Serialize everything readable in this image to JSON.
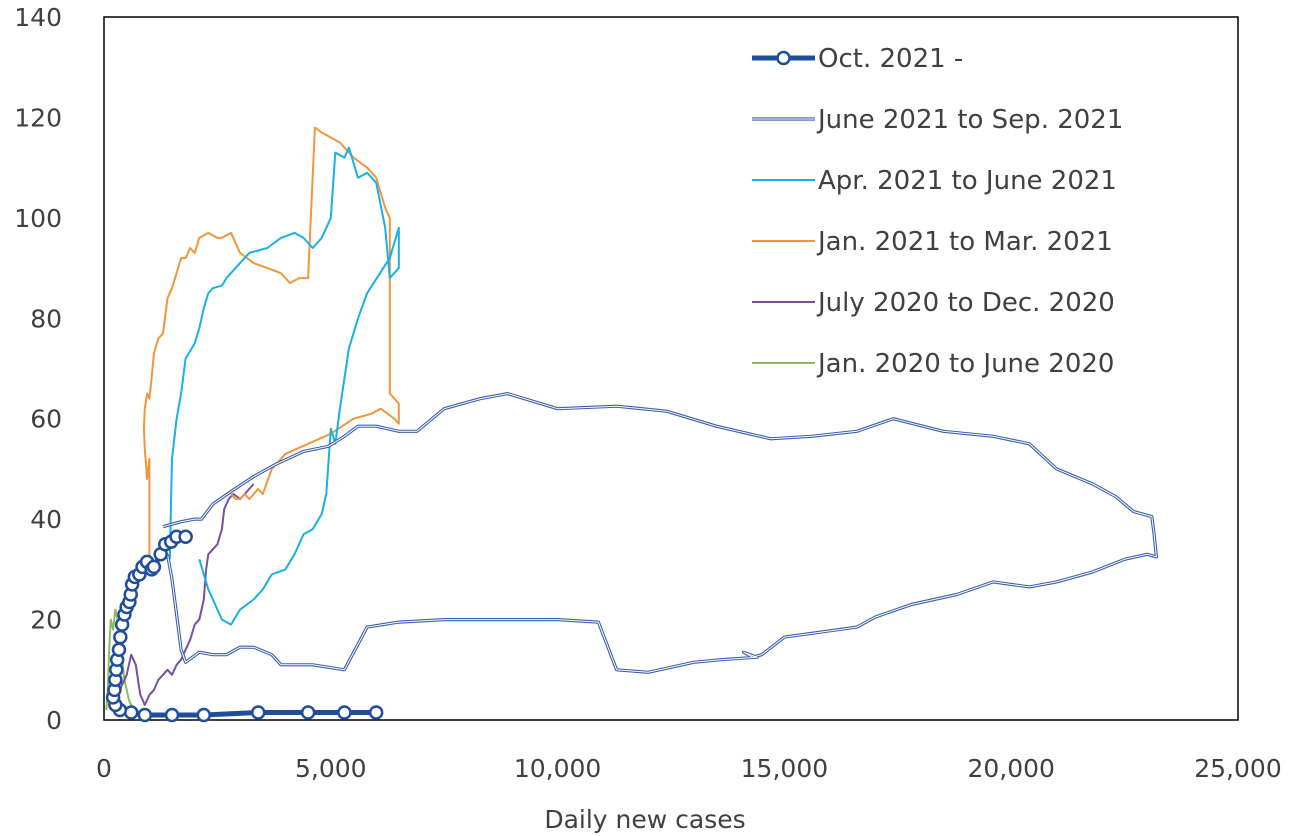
{
  "chart_data": {
    "type": "line",
    "xlabel": "Daily new cases",
    "ylabel": "",
    "xlim": [
      0,
      25000
    ],
    "ylim": [
      0,
      140
    ],
    "xticks": [
      0,
      5000,
      10000,
      15000,
      20000,
      25000
    ],
    "xtick_labels": [
      "0",
      "5,000",
      "10,000",
      "15,000",
      "20,000",
      "25,000"
    ],
    "yticks": [
      0,
      20,
      40,
      60,
      80,
      100,
      120,
      140
    ],
    "ytick_labels": [
      "0",
      "20",
      "40",
      "60",
      "80",
      "100",
      "120",
      "140"
    ],
    "grid": false,
    "legend_position": "top-right",
    "series": [
      {
        "name": "Oct. 2021 -",
        "color": "#1f4e9c",
        "style": "thick-markers",
        "points": [
          [
            6000,
            1.5
          ],
          [
            5300,
            1.5
          ],
          [
            4500,
            1.5
          ],
          [
            3400,
            1.5
          ],
          [
            2200,
            1
          ],
          [
            1500,
            1
          ],
          [
            900,
            1
          ],
          [
            600,
            1.5
          ],
          [
            350,
            2
          ],
          [
            250,
            3
          ],
          [
            200,
            4.5
          ],
          [
            230,
            6
          ],
          [
            250,
            8
          ],
          [
            270,
            10
          ],
          [
            290,
            12
          ],
          [
            330,
            14
          ],
          [
            360,
            16.5
          ],
          [
            400,
            19
          ],
          [
            450,
            21
          ],
          [
            500,
            22.5
          ],
          [
            560,
            23.5
          ],
          [
            590,
            25
          ],
          [
            620,
            27
          ],
          [
            680,
            28.5
          ],
          [
            780,
            29
          ],
          [
            850,
            30.5
          ],
          [
            950,
            31.5
          ],
          [
            1050,
            30
          ],
          [
            1100,
            30.5
          ],
          [
            1250,
            33
          ],
          [
            1350,
            35
          ],
          [
            1480,
            35.5
          ],
          [
            1600,
            36.5
          ],
          [
            1800,
            36.5
          ]
        ]
      },
      {
        "name": "June 2021 to Sep. 2021",
        "color": "#3d5fb0",
        "style": "double",
        "points": [
          [
            1300,
            38.5
          ],
          [
            1700,
            39.5
          ],
          [
            2000,
            40
          ],
          [
            2150,
            40
          ],
          [
            2400,
            43
          ],
          [
            2800,
            45.5
          ],
          [
            3300,
            48.5
          ],
          [
            3800,
            51
          ],
          [
            4400,
            53.5
          ],
          [
            4950,
            54.5
          ],
          [
            5300,
            56.5
          ],
          [
            5600,
            58.5
          ],
          [
            6000,
            58.5
          ],
          [
            6500,
            57.5
          ],
          [
            6900,
            57.5
          ],
          [
            7500,
            62
          ],
          [
            8300,
            64
          ],
          [
            8900,
            65
          ],
          [
            10000,
            62
          ],
          [
            11300,
            62.5
          ],
          [
            12400,
            61.5
          ],
          [
            13500,
            58.5
          ],
          [
            14700,
            56
          ],
          [
            15600,
            56.5
          ],
          [
            16600,
            57.5
          ],
          [
            17400,
            60
          ],
          [
            18500,
            57.5
          ],
          [
            19600,
            56.5
          ],
          [
            20400,
            55
          ],
          [
            21000,
            50
          ],
          [
            21800,
            47
          ],
          [
            22300,
            44.5
          ],
          [
            22700,
            41.5
          ],
          [
            23100,
            40.5
          ],
          [
            23150,
            37
          ],
          [
            23200,
            32.5
          ],
          [
            23000,
            33
          ],
          [
            22500,
            32
          ],
          [
            21800,
            29.5
          ],
          [
            21000,
            27.5
          ],
          [
            20400,
            26.5
          ],
          [
            19600,
            27.5
          ],
          [
            18800,
            25
          ],
          [
            17800,
            23
          ],
          [
            17000,
            20.5
          ],
          [
            16600,
            18.5
          ],
          [
            15800,
            17.5
          ],
          [
            15000,
            16.5
          ],
          [
            14500,
            13
          ],
          [
            14300,
            12.5
          ],
          [
            14100,
            13.5
          ],
          [
            14400,
            12.5
          ],
          [
            13600,
            12
          ],
          [
            13000,
            11.5
          ],
          [
            12000,
            9.5
          ],
          [
            11300,
            10
          ],
          [
            10900,
            19.5
          ],
          [
            10000,
            20
          ],
          [
            8500,
            20
          ],
          [
            7500,
            20
          ],
          [
            6500,
            19.5
          ],
          [
            5800,
            18.5
          ],
          [
            5300,
            10
          ],
          [
            4600,
            11
          ],
          [
            3900,
            11
          ],
          [
            3700,
            13
          ],
          [
            3300,
            14.5
          ],
          [
            3000,
            14.5
          ],
          [
            2700,
            13
          ],
          [
            2400,
            13
          ],
          [
            2100,
            13.5
          ],
          [
            1800,
            11.5
          ],
          [
            1700,
            14
          ],
          [
            1600,
            21
          ],
          [
            1500,
            28
          ],
          [
            1400,
            33
          ]
        ]
      },
      {
        "name": "Apr. 2021 to June 2021",
        "color": "#1aafe6",
        "style": "thin",
        "points": [
          [
            1450,
            32
          ],
          [
            1500,
            52
          ],
          [
            1600,
            60
          ],
          [
            1700,
            65
          ],
          [
            1800,
            72
          ],
          [
            2000,
            75
          ],
          [
            2100,
            78
          ],
          [
            2200,
            82
          ],
          [
            2300,
            85
          ],
          [
            2400,
            86
          ],
          [
            2600,
            86.5
          ],
          [
            2700,
            88
          ],
          [
            2900,
            90
          ],
          [
            3200,
            93
          ],
          [
            3600,
            94
          ],
          [
            3900,
            96
          ],
          [
            4200,
            97
          ],
          [
            4400,
            96
          ],
          [
            4600,
            94
          ],
          [
            4800,
            96
          ],
          [
            5000,
            100
          ],
          [
            5100,
            113
          ],
          [
            5300,
            112
          ],
          [
            5400,
            114
          ],
          [
            5600,
            108
          ],
          [
            5800,
            109
          ],
          [
            6000,
            107
          ],
          [
            6200,
            98
          ],
          [
            6300,
            88
          ],
          [
            6500,
            90
          ],
          [
            6500,
            98
          ],
          [
            6300,
            92
          ],
          [
            5800,
            85
          ],
          [
            5600,
            80
          ],
          [
            5400,
            74
          ],
          [
            5200,
            62
          ],
          [
            5100,
            55
          ],
          [
            5000,
            58
          ],
          [
            4900,
            45
          ],
          [
            4800,
            41
          ],
          [
            4600,
            38
          ],
          [
            4400,
            37
          ],
          [
            4200,
            33
          ],
          [
            4000,
            30
          ],
          [
            3700,
            29
          ],
          [
            3500,
            26
          ],
          [
            3300,
            24
          ],
          [
            3000,
            22
          ],
          [
            2800,
            19
          ],
          [
            2600,
            20
          ],
          [
            2400,
            24
          ],
          [
            2300,
            26
          ],
          [
            2200,
            29
          ],
          [
            2100,
            32
          ]
        ]
      },
      {
        "name": "Jan. 2021 to Mar. 2021",
        "color": "#f0963c",
        "style": "thin",
        "points": [
          [
            1200,
            32
          ],
          [
            1100,
            30
          ],
          [
            1000,
            33
          ],
          [
            1000,
            52
          ],
          [
            950,
            48
          ],
          [
            900,
            54
          ],
          [
            880,
            58
          ],
          [
            900,
            62
          ],
          [
            950,
            65
          ],
          [
            1000,
            64
          ],
          [
            1050,
            68
          ],
          [
            1100,
            73
          ],
          [
            1200,
            76
          ],
          [
            1300,
            77
          ],
          [
            1400,
            84
          ],
          [
            1500,
            86
          ],
          [
            1600,
            89
          ],
          [
            1700,
            92
          ],
          [
            1800,
            92
          ],
          [
            1900,
            94
          ],
          [
            2000,
            93
          ],
          [
            2100,
            96
          ],
          [
            2300,
            97
          ],
          [
            2500,
            96
          ],
          [
            2600,
            96
          ],
          [
            2800,
            97
          ],
          [
            3000,
            93
          ],
          [
            3300,
            91
          ],
          [
            3600,
            90
          ],
          [
            3900,
            89
          ],
          [
            4100,
            87
          ],
          [
            4300,
            88
          ],
          [
            4500,
            88
          ],
          [
            4650,
            118
          ],
          [
            4800,
            117
          ],
          [
            5200,
            115
          ],
          [
            5500,
            112
          ],
          [
            5800,
            110
          ],
          [
            6000,
            108
          ],
          [
            6200,
            102
          ],
          [
            6300,
            100
          ],
          [
            6300,
            65
          ],
          [
            6400,
            64
          ],
          [
            6500,
            63
          ],
          [
            6500,
            59
          ],
          [
            6400,
            60
          ],
          [
            6100,
            62
          ],
          [
            5900,
            61
          ],
          [
            5500,
            60
          ],
          [
            5000,
            57
          ],
          [
            4500,
            55
          ],
          [
            4000,
            53
          ],
          [
            3700,
            50
          ],
          [
            3500,
            45
          ],
          [
            3400,
            46
          ],
          [
            3300,
            45
          ],
          [
            3200,
            44
          ],
          [
            3100,
            45
          ],
          [
            3000,
            44
          ],
          [
            2900,
            44
          ],
          [
            2800,
            45
          ]
        ]
      },
      {
        "name": "July 2020 to Dec. 2020",
        "color": "#7a4f9e",
        "style": "thin",
        "points": [
          [
            250,
            3
          ],
          [
            300,
            5
          ],
          [
            400,
            7
          ],
          [
            500,
            9
          ],
          [
            550,
            11
          ],
          [
            600,
            13
          ],
          [
            650,
            12
          ],
          [
            700,
            11
          ],
          [
            750,
            8
          ],
          [
            800,
            5
          ],
          [
            850,
            4
          ],
          [
            900,
            3
          ],
          [
            950,
            4
          ],
          [
            1000,
            5
          ],
          [
            1100,
            6
          ],
          [
            1200,
            8
          ],
          [
            1300,
            9
          ],
          [
            1400,
            10
          ],
          [
            1500,
            9
          ],
          [
            1600,
            11
          ],
          [
            1700,
            12
          ],
          [
            1800,
            14
          ],
          [
            1900,
            16
          ],
          [
            2000,
            19
          ],
          [
            2100,
            20
          ],
          [
            2200,
            24
          ],
          [
            2250,
            30
          ],
          [
            2300,
            33
          ],
          [
            2400,
            34
          ],
          [
            2500,
            35
          ],
          [
            2600,
            38
          ],
          [
            2650,
            42
          ],
          [
            2750,
            44
          ],
          [
            2850,
            45
          ],
          [
            3000,
            44
          ],
          [
            3200,
            46
          ],
          [
            3300,
            47
          ]
        ]
      },
      {
        "name": "Jan. 2020 to June 2020",
        "color": "#8dbb5f",
        "style": "thin",
        "points": [
          [
            50,
            2
          ],
          [
            80,
            5
          ],
          [
            100,
            10
          ],
          [
            120,
            15
          ],
          [
            150,
            20
          ],
          [
            200,
            18
          ],
          [
            250,
            22
          ],
          [
            300,
            20
          ],
          [
            350,
            16
          ],
          [
            400,
            12
          ],
          [
            450,
            8
          ],
          [
            500,
            6
          ],
          [
            550,
            4
          ],
          [
            600,
            3
          ],
          [
            650,
            2
          ],
          [
            700,
            1
          ],
          [
            750,
            1
          ]
        ]
      }
    ]
  }
}
